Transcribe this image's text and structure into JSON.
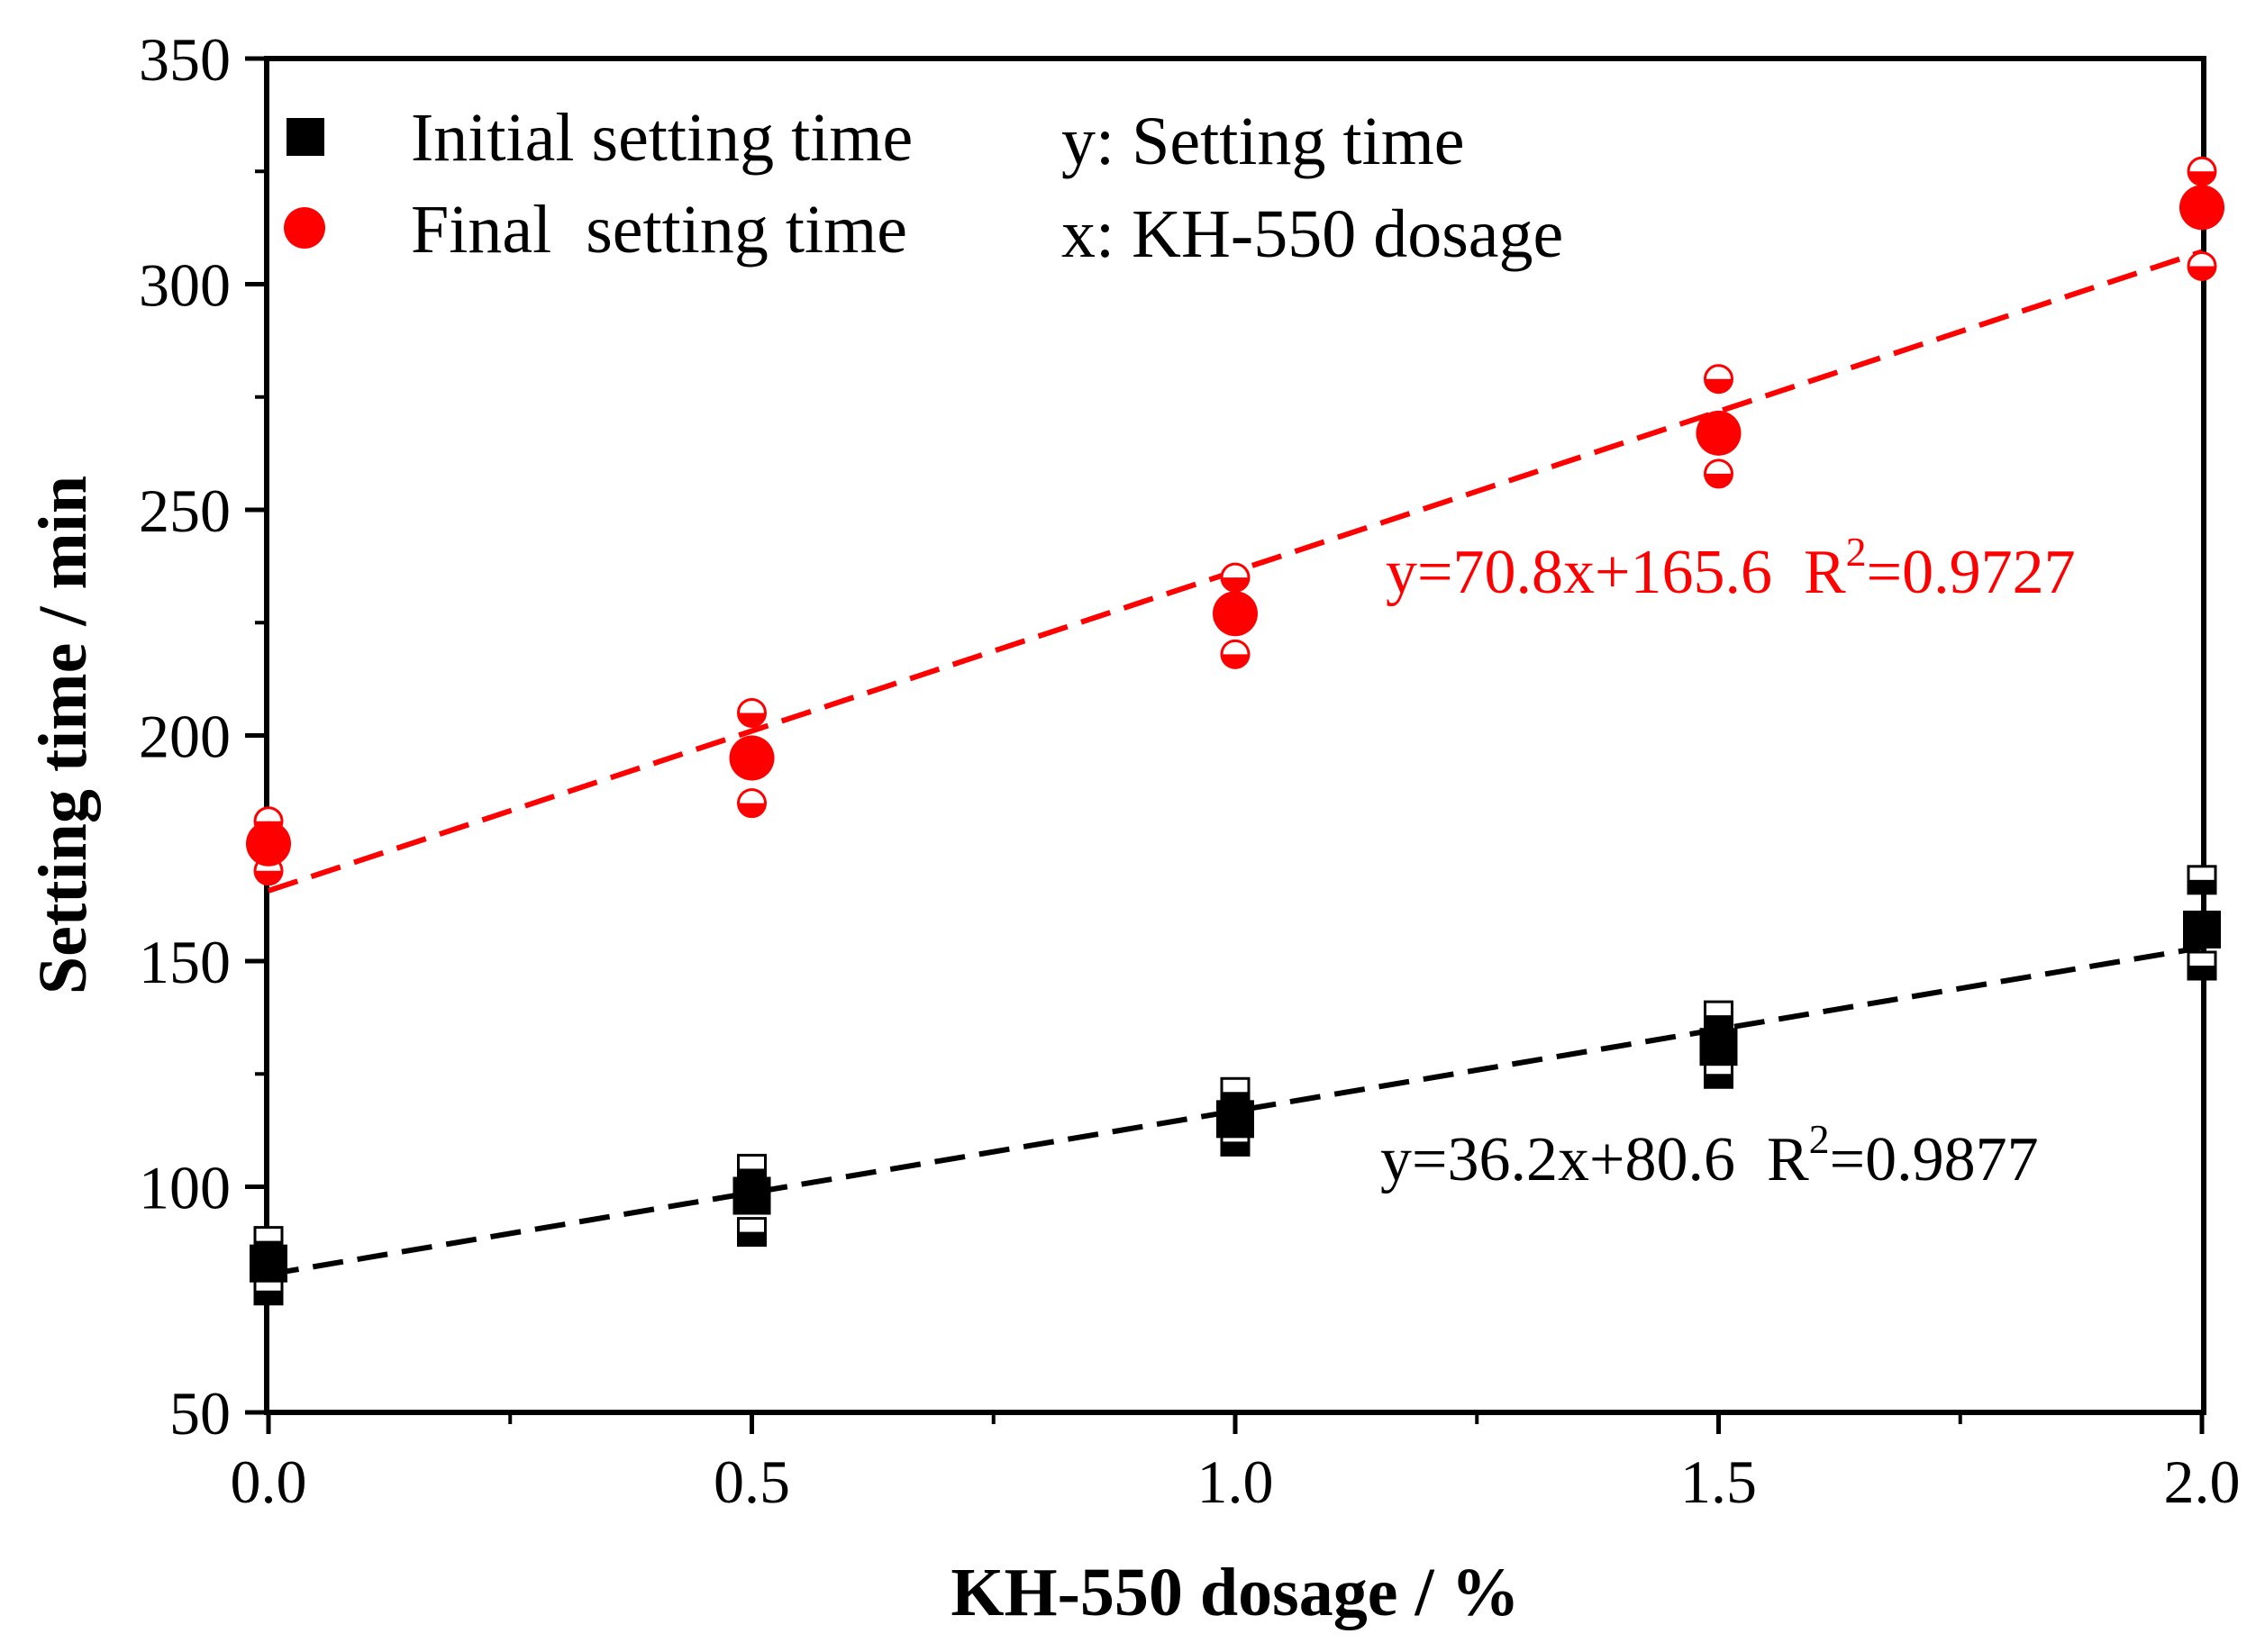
{
  "colors": {
    "initial": "#000000",
    "final": "#ff0000",
    "axis": "#000000"
  },
  "legend": {
    "initial_label": "Initial setting time",
    "final_label": "Final  setting time",
    "y_note": "y: Setting time",
    "x_note": "x: KH-550 dosage"
  },
  "equations": {
    "final": {
      "prefix": "y=70.8x+165.6  R",
      "sup": "2",
      "suffix": "=0.9727"
    },
    "initial": {
      "prefix": "y=36.2x+80.6  R",
      "sup": "2",
      "suffix": "=0.9877"
    }
  },
  "chart_data": {
    "type": "scatter",
    "title": "",
    "xlabel": "KH-550 dosage / %",
    "ylabel": "Setting time / min",
    "xlim": [
      0.0,
      2.0
    ],
    "ylim": [
      50,
      350
    ],
    "x_ticks": [
      "0.0",
      "0.5",
      "1.0",
      "1.5",
      "2.0"
    ],
    "x_tick_values": [
      0.0,
      0.5,
      1.0,
      1.5,
      2.0
    ],
    "y_ticks": [
      "50",
      "100",
      "150",
      "200",
      "250",
      "300",
      "350"
    ],
    "y_tick_values": [
      50,
      100,
      150,
      200,
      250,
      300,
      350
    ],
    "series": [
      {
        "name": "Initial setting time",
        "marker": "square",
        "x": [
          0.0,
          0.5,
          1.0,
          1.5,
          2.0
        ],
        "values": [
          83,
          98,
          115,
          131,
          157
        ],
        "max": [
          88,
          104,
          121,
          138,
          168
        ],
        "min": [
          77,
          90,
          110,
          125,
          149
        ],
        "fit": {
          "slope": 36.2,
          "intercept": 80.6,
          "r2": 0.9877
        }
      },
      {
        "name": "Final  setting time",
        "marker": "circle",
        "x": [
          0.0,
          0.5,
          1.0,
          1.5,
          2.0
        ],
        "values": [
          176,
          195,
          227,
          267,
          317
        ],
        "max": [
          181,
          205,
          235,
          279,
          325
        ],
        "min": [
          170,
          185,
          218,
          258,
          304
        ],
        "fit": {
          "slope": 70.8,
          "intercept": 165.6,
          "r2": 0.9727
        }
      }
    ]
  }
}
